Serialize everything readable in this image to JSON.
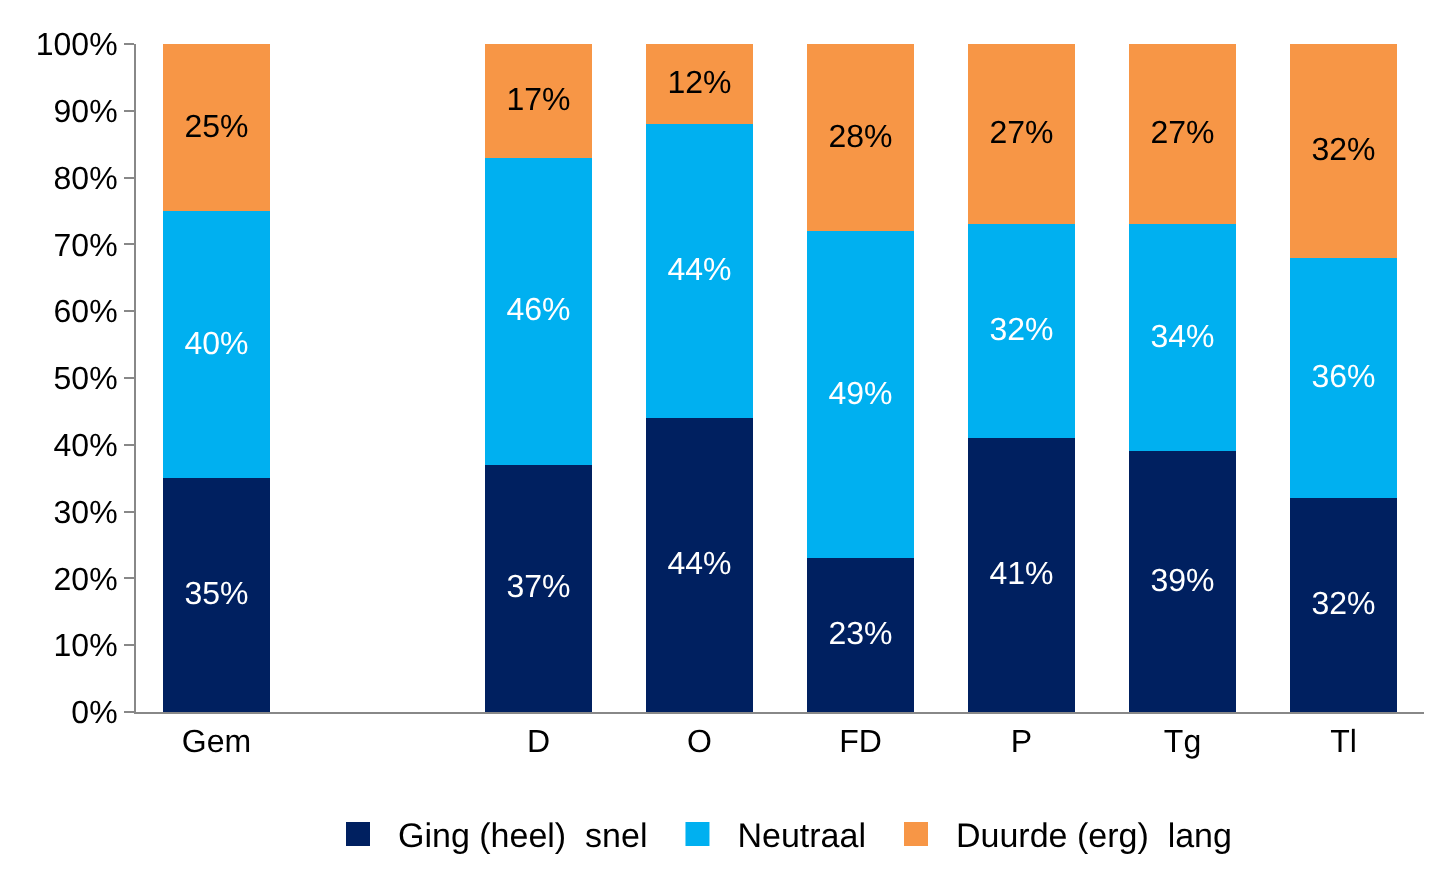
{
  "chart_data": {
    "type": "bar",
    "stacked": true,
    "categories": [
      "Gem",
      null,
      "D",
      "O",
      "FD",
      "P",
      "Tg",
      "Tl"
    ],
    "series": [
      {
        "name": "Ging (heel)  snel",
        "color": "#002060",
        "values": [
          35,
          null,
          37,
          44,
          23,
          41,
          39,
          32
        ],
        "value_labels": [
          "35%",
          null,
          "37%",
          "44%",
          "23%",
          "41%",
          "39%",
          "32%"
        ]
      },
      {
        "name": "Neutraal",
        "color": "#00b0f0",
        "values": [
          40,
          null,
          46,
          44,
          49,
          32,
          34,
          36
        ],
        "value_labels": [
          "40%",
          null,
          "46%",
          "44%",
          "49%",
          "32%",
          "34%",
          "36%"
        ]
      },
      {
        "name": "Duurde (erg)  lang",
        "color": "#f79646",
        "values": [
          25,
          null,
          17,
          12,
          28,
          27,
          27,
          32
        ],
        "value_labels": [
          "25%",
          null,
          "17%",
          "12%",
          "28%",
          "27%",
          "27%",
          "32%"
        ]
      }
    ],
    "ylim": [
      0,
      100
    ],
    "yticks": [
      {
        "value": 0,
        "label": "0%"
      },
      {
        "value": 10,
        "label": "10%"
      },
      {
        "value": 20,
        "label": "20%"
      },
      {
        "value": 30,
        "label": "30%"
      },
      {
        "value": 40,
        "label": "40%"
      },
      {
        "value": 50,
        "label": "50%"
      },
      {
        "value": 60,
        "label": "60%"
      },
      {
        "value": 70,
        "label": "70%"
      },
      {
        "value": 80,
        "label": "80%"
      },
      {
        "value": 90,
        "label": "90%"
      },
      {
        "value": 100,
        "label": "100%"
      }
    ],
    "legend": "bottom"
  }
}
